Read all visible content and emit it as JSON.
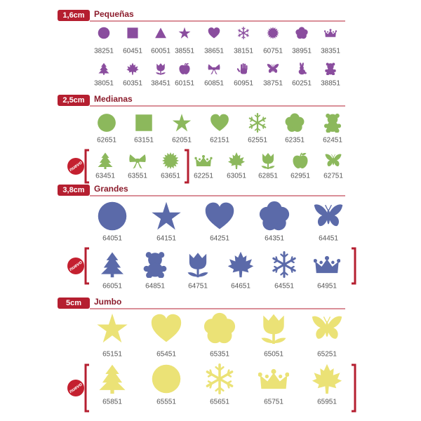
{
  "sections": [
    {
      "size": "1,6cm",
      "title": "Pequeñas",
      "rows": [
        {
          "items": [
            "38251",
            "60451",
            "60051",
            "38551",
            "38651",
            "38151",
            "60751",
            "38951",
            "38351"
          ]
        },
        {
          "items": [
            "38051",
            "60351",
            "38451",
            "60151",
            "60851",
            "60951",
            "38751",
            "60251",
            "38851"
          ]
        }
      ]
    },
    {
      "size": "2,5cm",
      "title": "Medianas",
      "rows": [
        {
          "items": [
            "62651",
            "63151",
            "62051",
            "62151",
            "62551",
            "62351",
            "62451"
          ]
        },
        {
          "badge": "nuevo",
          "items": [
            "63451",
            "63551",
            "63651",
            "62251",
            "63051",
            "62851",
            "62951",
            "62751"
          ]
        }
      ]
    },
    {
      "size": "3,8cm",
      "title": "Grandes",
      "rows": [
        {
          "items": [
            "64051",
            "64151",
            "64251",
            "64351",
            "64451"
          ]
        },
        {
          "badge": "nuevo",
          "items": [
            "66051",
            "64851",
            "64751",
            "64651",
            "64551",
            "64951"
          ]
        }
      ]
    },
    {
      "size": "5cm",
      "title": "Jumbo",
      "rows": [
        {
          "items": [
            "65151",
            "65451",
            "65351",
            "65051",
            "65251"
          ]
        },
        {
          "badge": "nuevo",
          "items": [
            "65851",
            "65551",
            "65651",
            "65751",
            "65951"
          ]
        }
      ]
    }
  ]
}
